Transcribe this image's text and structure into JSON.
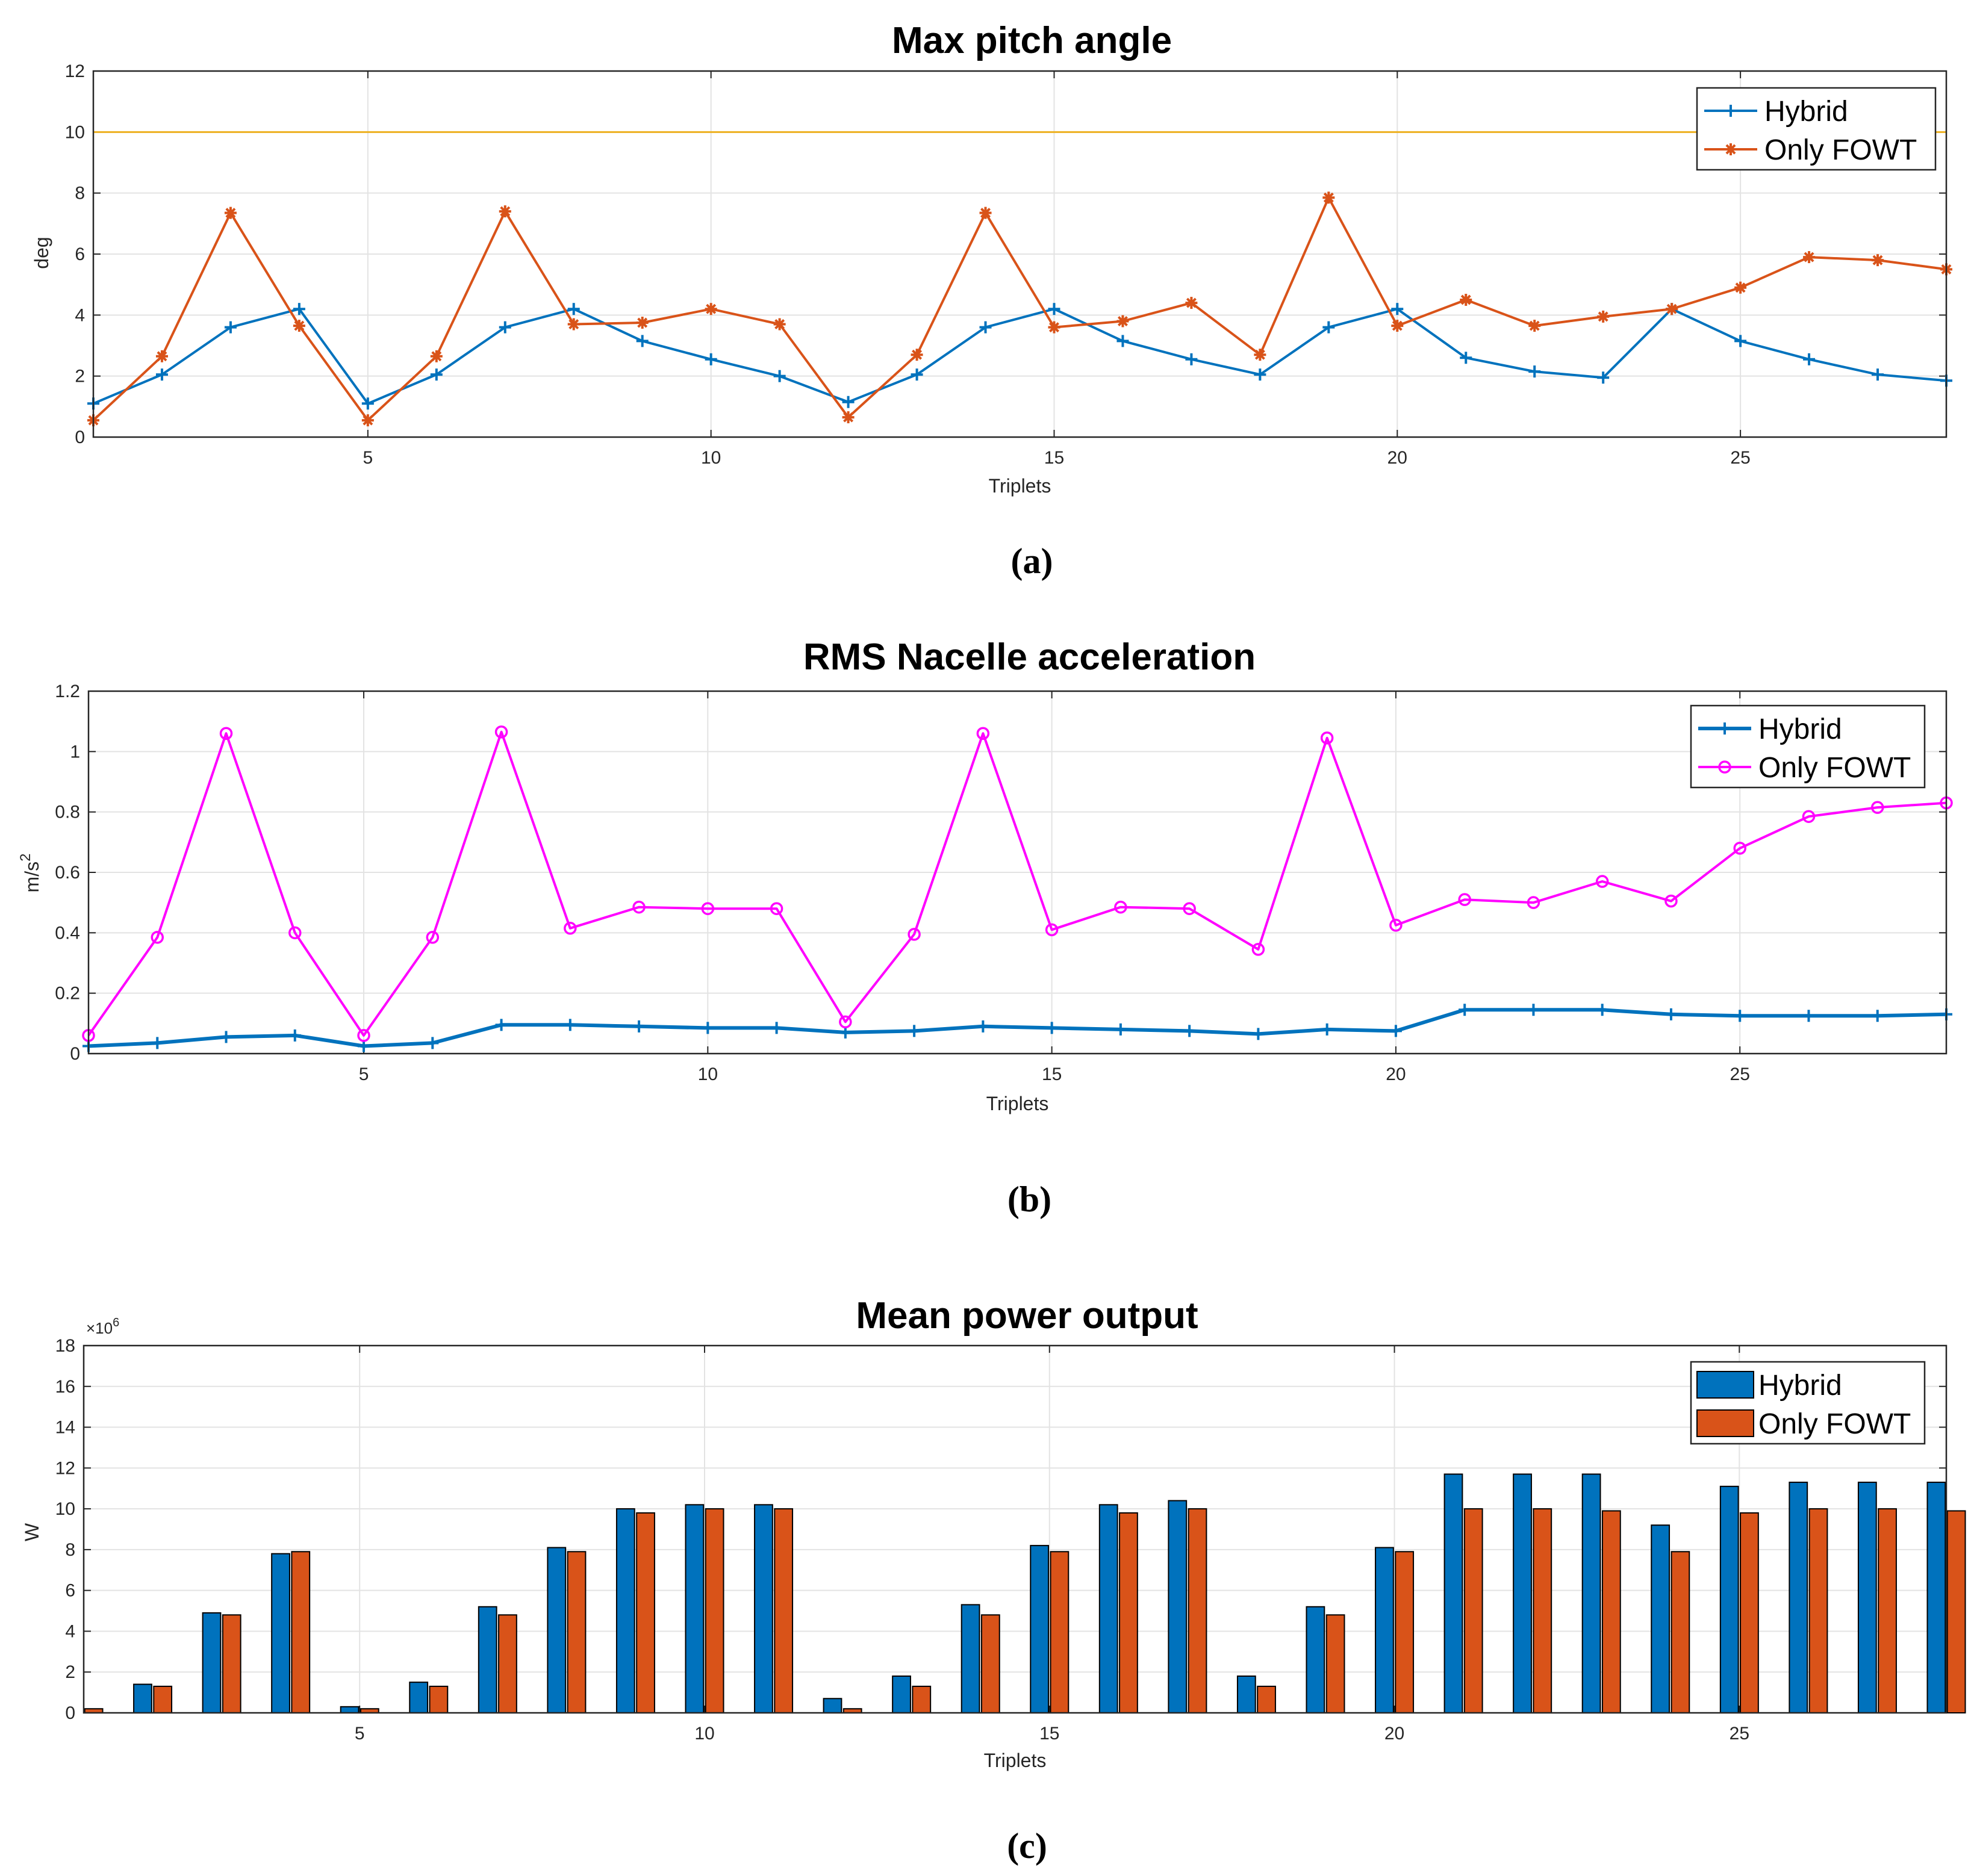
{
  "chart_data": [
    {
      "type": "line",
      "title": "Max pitch angle",
      "xlabel": "Triplets",
      "ylabel": "deg",
      "panel_label": "(a)",
      "xlim": [
        1,
        28
      ],
      "ylim": [
        0,
        12
      ],
      "xticks": [
        5,
        10,
        15,
        20,
        25
      ],
      "yticks": [
        0,
        2,
        4,
        6,
        8,
        10,
        12
      ],
      "grid": true,
      "legend_position": "top-right",
      "reference_line": {
        "y": 10,
        "color": "#EDB120"
      },
      "x": [
        1,
        2,
        3,
        4,
        5,
        6,
        7,
        8,
        9,
        10,
        11,
        12,
        13,
        14,
        15,
        16,
        17,
        18,
        19,
        20,
        21,
        22,
        23,
        24,
        25,
        26,
        27,
        28
      ],
      "series": [
        {
          "name": "Hybrid",
          "color": "#0072BD",
          "marker": "plus",
          "values": [
            1.1,
            2.05,
            3.6,
            4.2,
            1.1,
            2.05,
            3.6,
            4.2,
            3.15,
            2.55,
            2.0,
            1.15,
            2.05,
            3.6,
            4.2,
            3.15,
            2.55,
            2.05,
            3.6,
            4.2,
            2.6,
            2.15,
            1.95,
            4.2,
            3.15,
            2.55,
            2.05,
            1.85
          ]
        },
        {
          "name": "Only FOWT",
          "color": "#D95319",
          "marker": "star",
          "values": [
            0.55,
            2.65,
            7.35,
            3.65,
            0.55,
            2.65,
            7.4,
            3.7,
            3.75,
            4.2,
            3.7,
            0.65,
            2.7,
            7.35,
            3.6,
            3.8,
            4.4,
            2.7,
            7.85,
            3.65,
            4.5,
            3.65,
            3.95,
            4.2,
            4.9,
            5.9,
            5.8,
            5.5
          ]
        }
      ]
    },
    {
      "type": "line",
      "title": "RMS Nacelle acceleration",
      "xlabel": "Triplets",
      "ylabel": "m/s",
      "ylabel_exponent": "2",
      "panel_label": "(b)",
      "xlim": [
        1,
        28
      ],
      "ylim": [
        0,
        1.2
      ],
      "xticks": [
        5,
        10,
        15,
        20,
        25
      ],
      "yticks": [
        0,
        0.2,
        0.4,
        0.6,
        0.8,
        1,
        1.2
      ],
      "grid": true,
      "legend_position": "top-right",
      "x": [
        1,
        2,
        3,
        4,
        5,
        6,
        7,
        8,
        9,
        10,
        11,
        12,
        13,
        14,
        15,
        16,
        17,
        18,
        19,
        20,
        21,
        22,
        23,
        24,
        25,
        26,
        27,
        28
      ],
      "series": [
        {
          "name": "Hybrid",
          "color": "#0072BD",
          "marker": "plus",
          "values": [
            0.025,
            0.035,
            0.055,
            0.06,
            0.025,
            0.035,
            0.095,
            0.095,
            0.09,
            0.085,
            0.085,
            0.07,
            0.075,
            0.09,
            0.085,
            0.08,
            0.075,
            0.065,
            0.08,
            0.075,
            0.145,
            0.145,
            0.145,
            0.13,
            0.125,
            0.125,
            0.125,
            0.13
          ]
        },
        {
          "name": "Only FOWT",
          "color": "#FF00FF",
          "marker": "circle",
          "values": [
            0.06,
            0.385,
            1.06,
            0.4,
            0.06,
            0.385,
            1.065,
            0.415,
            0.485,
            0.48,
            0.48,
            0.105,
            0.395,
            1.06,
            0.41,
            0.485,
            0.48,
            0.345,
            1.045,
            0.425,
            0.51,
            0.5,
            0.57,
            0.505,
            0.68,
            0.785,
            0.815,
            0.83
          ]
        }
      ]
    },
    {
      "type": "bar",
      "title": "Mean power output",
      "xlabel": "Triplets",
      "ylabel": "W",
      "y_multiplier_base": "×10",
      "y_multiplier_exponent": "6",
      "panel_label": "(c)",
      "xlim": [
        1,
        28
      ],
      "ylim": [
        0,
        18
      ],
      "xticks": [
        5,
        10,
        15,
        20,
        25
      ],
      "yticks": [
        0,
        2,
        4,
        6,
        8,
        10,
        12,
        14,
        16,
        18
      ],
      "grid": true,
      "legend_position": "top-right",
      "categories": [
        1,
        2,
        3,
        4,
        5,
        6,
        7,
        8,
        9,
        10,
        11,
        12,
        13,
        14,
        15,
        16,
        17,
        18,
        19,
        20,
        21,
        22,
        23,
        24,
        25,
        26,
        27,
        28
      ],
      "series": [
        {
          "name": "Hybrid",
          "color": "#0072BD",
          "values": [
            0.2,
            1.4,
            4.9,
            7.8,
            0.3,
            1.5,
            5.2,
            8.1,
            10.0,
            10.2,
            10.2,
            0.7,
            1.8,
            5.3,
            8.2,
            10.2,
            10.4,
            1.8,
            5.2,
            8.1,
            11.7,
            11.7,
            11.7,
            9.2,
            11.1,
            11.3,
            11.3,
            11.3
          ]
        },
        {
          "name": "Only FOWT",
          "color": "#D95319",
          "values": [
            0.2,
            1.3,
            4.8,
            7.9,
            0.2,
            1.3,
            4.8,
            7.9,
            9.8,
            10.0,
            10.0,
            0.2,
            1.3,
            4.8,
            7.9,
            9.8,
            10.0,
            1.3,
            4.8,
            7.9,
            10.0,
            10.0,
            9.9,
            7.9,
            9.8,
            10.0,
            10.0,
            9.9
          ]
        }
      ]
    }
  ]
}
